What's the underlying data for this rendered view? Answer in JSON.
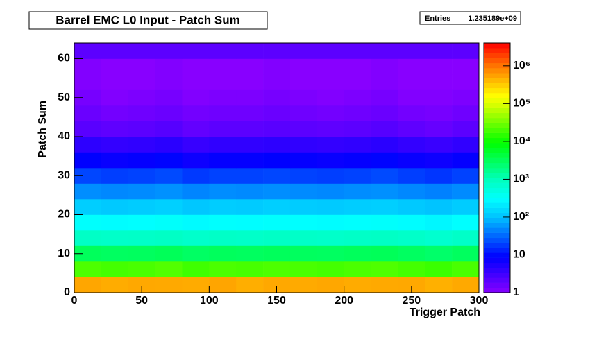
{
  "chart_data": {
    "type": "heatmap",
    "title": "Barrel EMC L0 Input - Patch Sum",
    "stats": {
      "label": "Entries",
      "value": "1.235189e+09"
    },
    "x_label": "Trigger Patch",
    "y_label": "Patch Sum",
    "xbins": [
      0,
      20,
      40,
      60,
      80,
      100,
      120,
      140,
      160,
      180,
      200,
      220,
      240,
      260,
      280,
      300
    ],
    "ybins": [
      0,
      4,
      8,
      12,
      16,
      20,
      24,
      28,
      32,
      36,
      40,
      44,
      48,
      52,
      56,
      60,
      64
    ],
    "values": [
      [
        520000,
        480000,
        510000,
        500000,
        490000,
        530000,
        470000,
        505000,
        495000,
        515000,
        485000,
        500000,
        510000,
        460000,
        500000
      ],
      [
        21000,
        19000,
        20000,
        22000,
        18000,
        20500,
        19500,
        21000,
        20000,
        19000,
        20500,
        21500,
        19000,
        17000,
        20000
      ],
      [
        3100,
        2900,
        3000,
        3200,
        2800,
        3050,
        2950,
        3100,
        3000,
        2900,
        3100,
        3200,
        2900,
        2600,
        3000
      ],
      [
        820,
        780,
        800,
        850,
        760,
        810,
        790,
        830,
        800,
        770,
        810,
        840,
        780,
        700,
        800
      ],
      [
        310,
        290,
        300,
        320,
        280,
        305,
        295,
        310,
        300,
        290,
        305,
        315,
        290,
        260,
        300
      ],
      [
        125,
        115,
        120,
        130,
        110,
        122,
        118,
        126,
        120,
        116,
        122,
        128,
        115,
        105,
        120
      ],
      [
        52,
        48,
        50,
        54,
        46,
        51,
        49,
        52,
        50,
        48,
        51,
        53,
        48,
        44,
        50
      ],
      [
        21,
        19,
        20,
        22,
        18,
        20,
        20,
        21,
        20,
        19,
        20,
        22,
        19,
        17,
        20
      ],
      [
        8.5,
        7.5,
        8,
        9,
        7,
        8,
        8,
        8.5,
        8,
        7.5,
        8,
        9,
        7.5,
        7,
        8
      ],
      [
        4.2,
        3.8,
        4,
        4.4,
        3.6,
        4,
        4,
        4.2,
        4,
        3.8,
        4,
        4.4,
        3.8,
        3.5,
        4
      ],
      [
        2.1,
        1.9,
        2,
        2.2,
        1.8,
        2,
        2,
        2.1,
        2,
        1.9,
        2,
        2.2,
        1.9,
        1.7,
        2
      ],
      [
        1.6,
        1.4,
        1.5,
        1.6,
        1.4,
        1.5,
        1.5,
        1.6,
        1.5,
        1.4,
        1.5,
        1.6,
        1.4,
        1.3,
        1.5
      ],
      [
        1.3,
        1.1,
        1.2,
        1.3,
        1.1,
        1.2,
        1.2,
        1.3,
        1.2,
        1.1,
        1.2,
        1.3,
        1.1,
        1.1,
        1.2
      ],
      [
        1.1,
        1,
        1,
        1.1,
        1,
        1,
        1,
        1.1,
        1,
        1,
        1,
        1.1,
        1,
        1,
        1
      ],
      [
        1.1,
        1,
        1,
        1.1,
        1,
        1,
        1,
        1.1,
        1,
        1,
        1,
        1.1,
        1,
        1,
        1
      ],
      [
        2,
        2,
        2,
        2,
        2,
        2,
        2,
        2,
        2,
        2,
        2,
        2,
        2,
        2,
        2
      ]
    ],
    "xlim": [
      0,
      300
    ],
    "ylim": [
      0,
      64
    ],
    "zlim": [
      1,
      4000000
    ],
    "z_log": true,
    "xticks": [
      0,
      50,
      100,
      150,
      200,
      250,
      300
    ],
    "yticks": [
      0,
      10,
      20,
      30,
      40,
      50,
      60
    ],
    "zticks": [
      1,
      10,
      {
        "value": 100,
        "label": "10²"
      },
      {
        "value": 1000,
        "label": "10³"
      },
      {
        "value": 10000,
        "label": "10⁴"
      },
      {
        "value": 100000,
        "label": "10⁵"
      },
      {
        "value": 1000000,
        "label": "10⁶"
      }
    ]
  }
}
